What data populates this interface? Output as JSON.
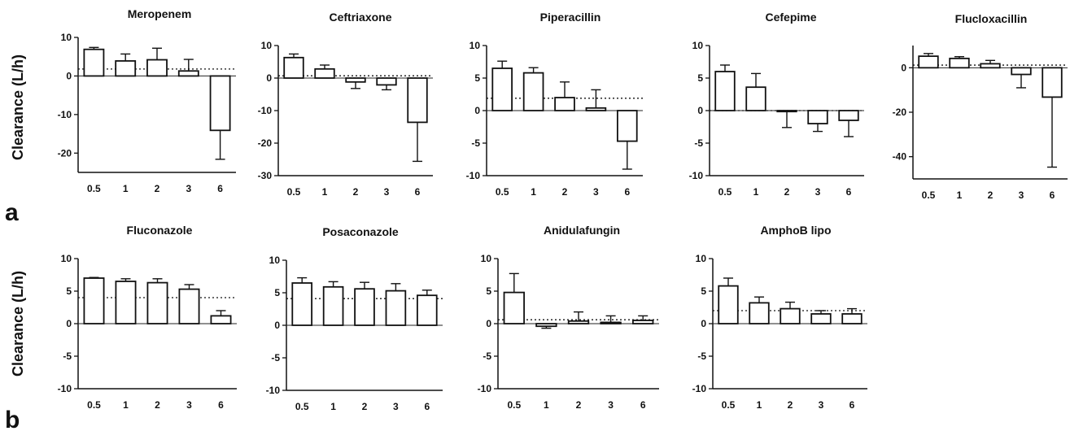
{
  "figure": {
    "panel_labels": [
      "a",
      "b"
    ],
    "row_ylabels": [
      "Clearance (L/h)",
      "Clearance (L/h)"
    ]
  },
  "chart_data": [
    {
      "type": "bar",
      "row": 0,
      "title": "Meropenem",
      "ylabel": "Clearance (L/h)",
      "xlabel": "",
      "categories": [
        "0.5",
        "1",
        "2",
        "3",
        "6"
      ],
      "values": [
        6.9,
        3.9,
        4.2,
        1.3,
        -14.1
      ],
      "errors": [
        0.5,
        1.8,
        3.0,
        3.0,
        7.5
      ],
      "reference": 1.8,
      "ylim": [
        -25,
        10
      ],
      "yticks": [
        -20,
        -10,
        0,
        10
      ]
    },
    {
      "type": "bar",
      "row": 0,
      "title": "Ceftriaxone",
      "ylabel": "",
      "xlabel": "",
      "categories": [
        "0.5",
        "1",
        "2",
        "3",
        "6"
      ],
      "values": [
        6.3,
        2.8,
        -1.2,
        -2.1,
        -13.6
      ],
      "errors": [
        1.1,
        1.2,
        2.0,
        1.5,
        12.0
      ],
      "reference": 0.7,
      "ylim": [
        -30,
        10
      ],
      "yticks": [
        -30,
        -20,
        -10,
        0,
        10
      ]
    },
    {
      "type": "bar",
      "row": 0,
      "title": "Piperacillin",
      "ylabel": "",
      "xlabel": "",
      "categories": [
        "0.5",
        "1",
        "2",
        "3",
        "6"
      ],
      "values": [
        6.5,
        5.8,
        2.0,
        0.4,
        -4.7
      ],
      "errors": [
        1.1,
        0.8,
        2.4,
        2.8,
        4.3
      ],
      "reference": 1.9,
      "ylim": [
        -10,
        10
      ],
      "yticks": [
        -10,
        -5,
        0,
        5,
        10
      ]
    },
    {
      "type": "bar",
      "row": 0,
      "title": "Cefepime",
      "ylabel": "",
      "xlabel": "",
      "categories": [
        "0.5",
        "1",
        "2",
        "3",
        "6"
      ],
      "values": [
        6.0,
        3.6,
        -0.1,
        -2.0,
        -1.5
      ],
      "errors": [
        1.0,
        2.1,
        2.5,
        1.2,
        2.5
      ],
      "reference": 0,
      "ylim": [
        -10,
        10
      ],
      "yticks": [
        -10,
        -5,
        0,
        5,
        10
      ]
    },
    {
      "type": "bar",
      "row": 0,
      "title": "Flucloxacillin",
      "ylabel": "",
      "xlabel": "",
      "categories": [
        "0.5",
        "1",
        "2",
        "3",
        "6"
      ],
      "values": [
        5.2,
        4.2,
        1.8,
        -3.0,
        -13.2
      ],
      "errors": [
        1.2,
        0.8,
        1.5,
        6.0,
        31.5
      ],
      "reference": 1.2,
      "ylim": [
        -50,
        10
      ],
      "yticks": [
        -40,
        -20,
        0
      ]
    },
    {
      "type": "bar",
      "row": 1,
      "title": "Fluconazole",
      "ylabel": "Clearance (L/h)",
      "xlabel": "",
      "categories": [
        "0.5",
        "1",
        "2",
        "3",
        "6"
      ],
      "values": [
        7.0,
        6.5,
        6.3,
        5.3,
        1.2
      ],
      "errors": [
        0.1,
        0.4,
        0.6,
        0.7,
        0.8
      ],
      "reference": 4.0,
      "ylim": [
        -10,
        10
      ],
      "yticks": [
        -10,
        -5,
        0,
        5,
        10
      ]
    },
    {
      "type": "bar",
      "row": 1,
      "title": "Posaconazole",
      "ylabel": "",
      "xlabel": "",
      "categories": [
        "0.5",
        "1",
        "2",
        "3",
        "6"
      ],
      "values": [
        6.5,
        5.9,
        5.6,
        5.3,
        4.6
      ],
      "errors": [
        0.8,
        0.8,
        1.0,
        1.1,
        0.8
      ],
      "reference": 4.1,
      "ylim": [
        -10,
        10
      ],
      "yticks": [
        -10,
        -5,
        0,
        5,
        10
      ]
    },
    {
      "type": "bar",
      "row": 1,
      "title": "Anidulafungin",
      "ylabel": "",
      "xlabel": "",
      "categories": [
        "0.5",
        "1",
        "2",
        "3",
        "6"
      ],
      "values": [
        4.8,
        -0.4,
        0.4,
        0.2,
        0.5
      ],
      "errors": [
        2.9,
        0.3,
        1.4,
        1.0,
        0.7
      ],
      "reference": 0.6,
      "ylim": [
        -10,
        10
      ],
      "yticks": [
        -10,
        -5,
        0,
        5,
        10
      ]
    },
    {
      "type": "bar",
      "row": 1,
      "title": "AmphoB lipo",
      "ylabel": "",
      "xlabel": "",
      "categories": [
        "0.5",
        "1",
        "2",
        "3",
        "6"
      ],
      "values": [
        5.8,
        3.2,
        2.3,
        1.5,
        1.5
      ],
      "errors": [
        1.2,
        0.9,
        1.0,
        0.5,
        0.8
      ],
      "reference": 2.0,
      "ylim": [
        -10,
        10
      ],
      "yticks": [
        -10,
        -5,
        0,
        5,
        10
      ]
    }
  ]
}
